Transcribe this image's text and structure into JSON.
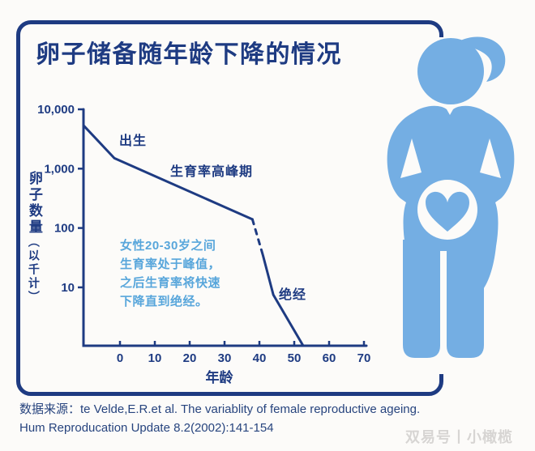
{
  "colors": {
    "navy": "#1e3b82",
    "figure_blue": "#74aee3",
    "note_blue": "#58a6db",
    "source_navy": "#27447e",
    "watermark_gray": "#d7d5d3",
    "background": "#fcfbf9"
  },
  "header": {
    "title": "卵子储备随年龄下降的情况"
  },
  "chart_data": {
    "type": "line",
    "title": "卵子储备随年龄下降的情况",
    "xlabel": "年龄",
    "ylabel": "卵子数量（以千计）",
    "ylabel_parts": {
      "main": "卵子数量",
      "sub": "（以千计）"
    },
    "x_ticks": [
      "0",
      "10",
      "20",
      "30",
      "40",
      "50",
      "60",
      "70"
    ],
    "y_ticks": [
      {
        "label": "10,000",
        "value": 10000
      },
      {
        "label": "1,000",
        "value": 1000
      },
      {
        "label": "100",
        "value": 100
      },
      {
        "label": "10",
        "value": 10
      }
    ],
    "y_scale": "log",
    "y_unit": "thousands of eggs",
    "x_axis_range_years": [
      -10.5,
      70.7
    ],
    "grid": false,
    "series": [
      {
        "name": "prenatal-to-age-38",
        "style": "solid",
        "points": [
          [
            -10.4,
            5300
          ],
          [
            -1.6,
            1500
          ],
          [
            38,
            140
          ]
        ]
      },
      {
        "name": "uncertain-gap",
        "style": "dashed",
        "points": [
          [
            38,
            140
          ],
          [
            41,
            35
          ]
        ]
      },
      {
        "name": "decline-to-menopause",
        "style": "solid",
        "points": [
          [
            41,
            35
          ],
          [
            44,
            7.5
          ],
          [
            52.5,
            1.05
          ]
        ]
      }
    ],
    "annotations": [
      {
        "id": "birth",
        "text": "出生"
      },
      {
        "id": "peak-fertility",
        "text": "生育率高峰期"
      },
      {
        "id": "menopause",
        "text": "绝经"
      }
    ],
    "note_lines": [
      "女性20-30岁之间",
      "生育率处于峰值，",
      "之后生育率将快速",
      "下降直到绝经。"
    ]
  },
  "source": {
    "line1": "数据来源：te Velde,E.R.et al. The variablity of female reproductive ageing.",
    "line2": "Hum Reproducation Update 8.2(2002):141-154"
  },
  "watermark": {
    "text": "双易号丨小橄榄"
  },
  "figure": {
    "description": "pregnant-woman-silhouette-with-heart-in-belly"
  }
}
